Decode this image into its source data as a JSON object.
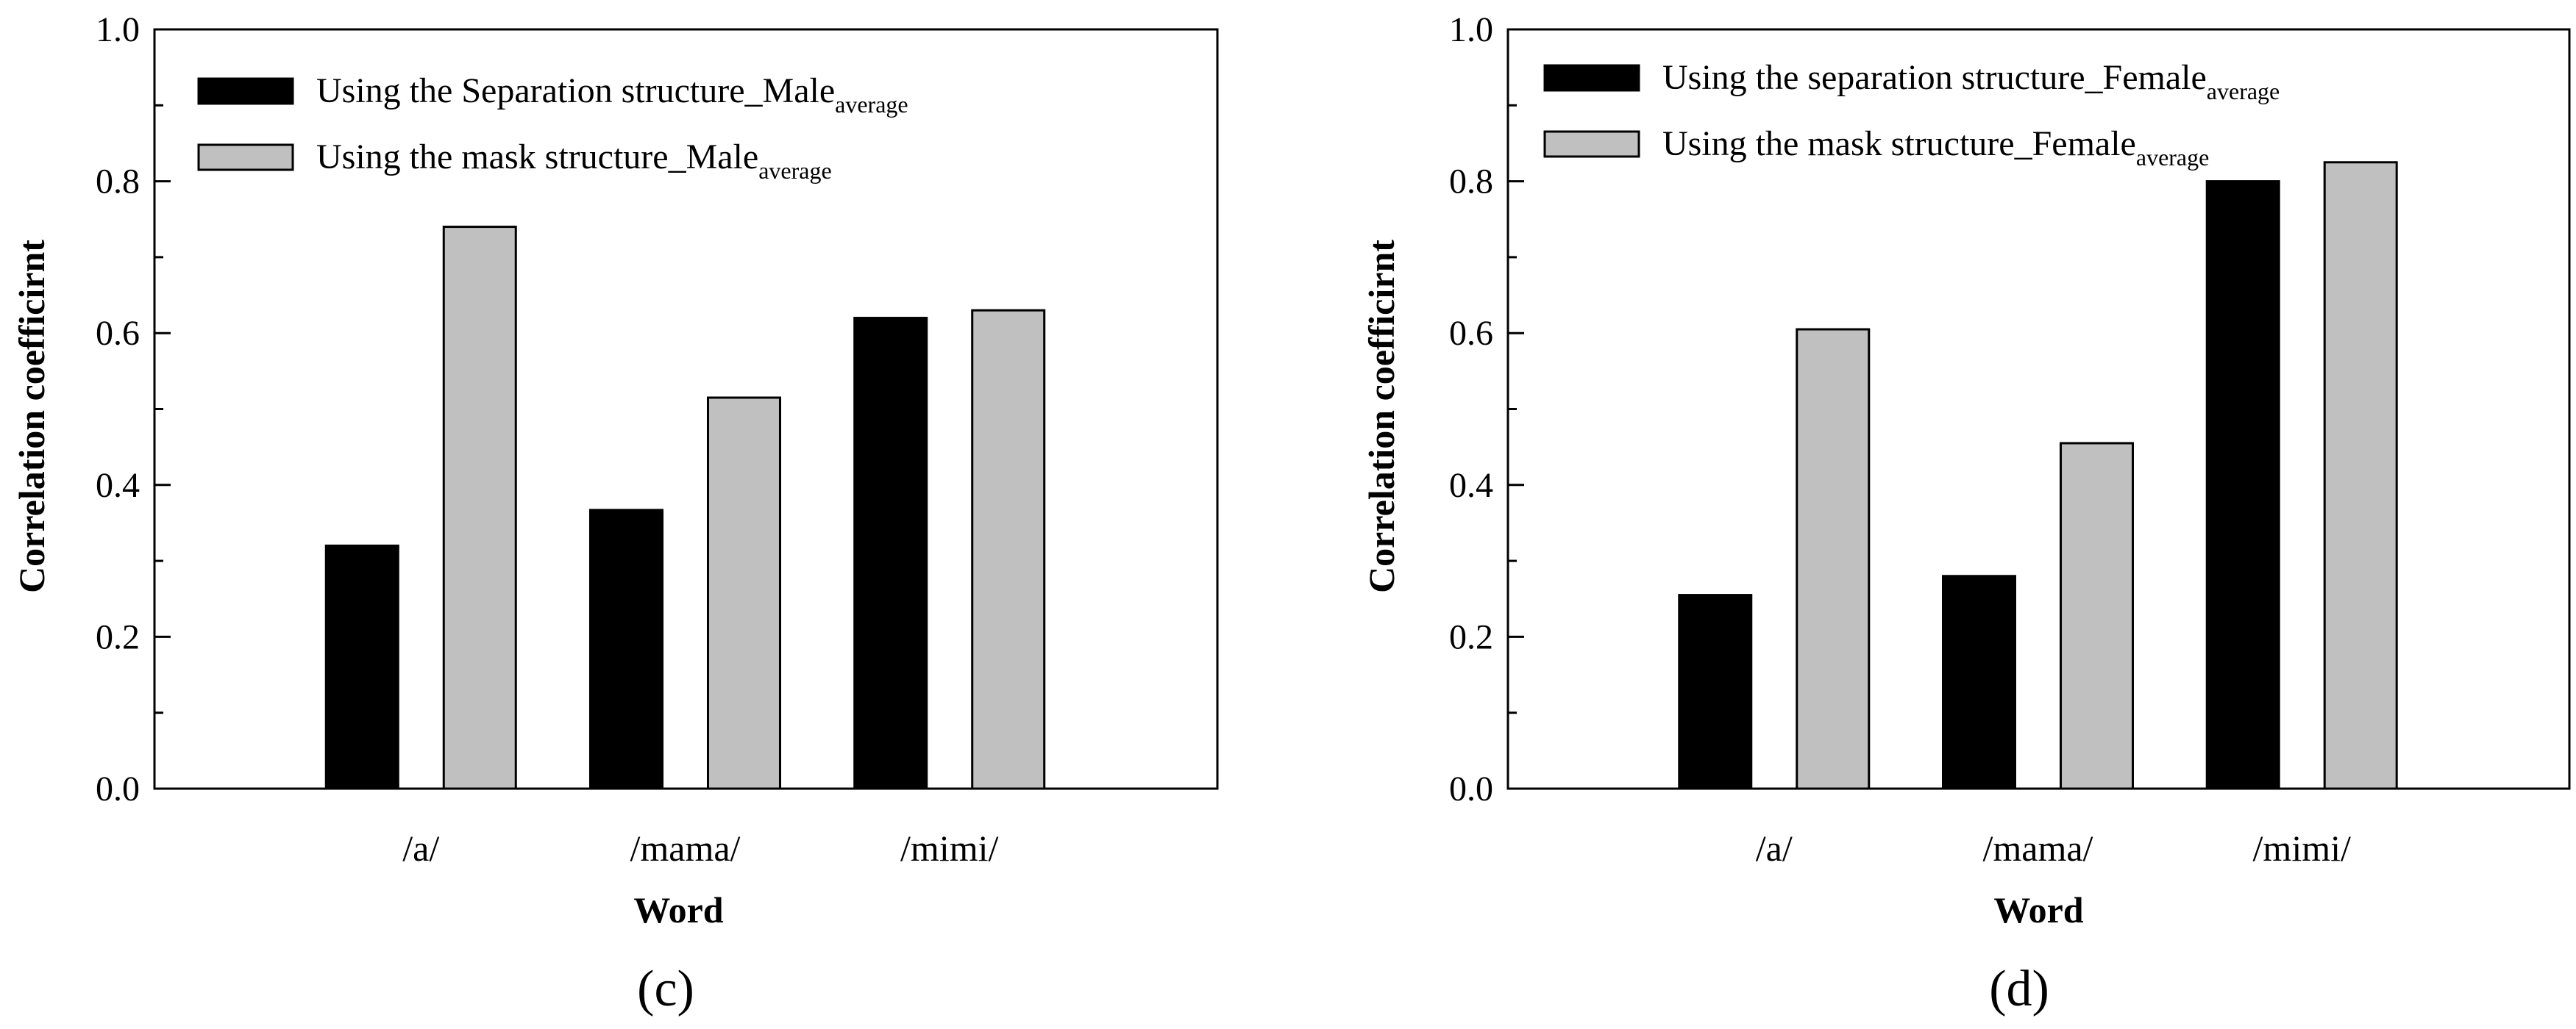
{
  "chart_data": [
    {
      "type": "bar",
      "panel_label": "(c)",
      "categories": [
        "/a/",
        "/mama/",
        "/mimi/"
      ],
      "series": [
        {
          "name": "Using the Separation structure_Male",
          "name_sub": "average",
          "color": "#000000",
          "values": [
            0.32,
            0.367,
            0.62
          ]
        },
        {
          "name": "Using the mask structure_Male",
          "name_sub": "average",
          "color": "#c0c0c0",
          "values": [
            0.74,
            0.515,
            0.63
          ]
        }
      ],
      "xlabel": "Word",
      "ylabel": "Correlation coefficirnt",
      "ylim": [
        0,
        1.0
      ],
      "yticks": [
        "0.0",
        "0.2",
        "0.4",
        "0.6",
        "0.8",
        "1.0"
      ],
      "legend": "top-left",
      "grid": false
    },
    {
      "type": "bar",
      "panel_label": "(d)",
      "categories": [
        "/a/",
        "/mama/",
        "/mimi/"
      ],
      "series": [
        {
          "name": "Using the separation structure_Female",
          "name_sub": "average",
          "color": "#000000",
          "values": [
            0.255,
            0.28,
            0.8
          ]
        },
        {
          "name": "Using the mask structure_Female",
          "name_sub": "average",
          "color": "#c0c0c0",
          "values": [
            0.605,
            0.455,
            0.825
          ]
        }
      ],
      "xlabel": "Word",
      "ylabel": "Correlation coefficirnt",
      "ylim": [
        0,
        1.0
      ],
      "yticks": [
        "0.0",
        "0.2",
        "0.4",
        "0.6",
        "0.8",
        "1.0"
      ],
      "legend": "top-left",
      "grid": false
    }
  ]
}
